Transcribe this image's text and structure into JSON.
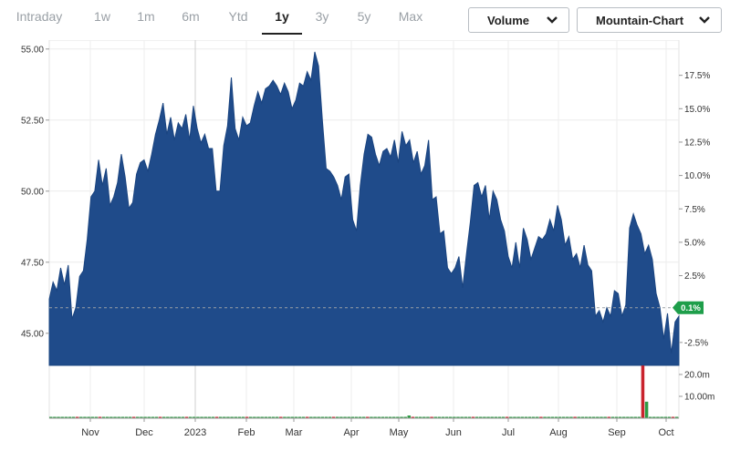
{
  "tabs": [
    {
      "label": "Intraday",
      "active": false
    },
    {
      "label": "1w",
      "active": false
    },
    {
      "label": "1m",
      "active": false
    },
    {
      "label": "6m",
      "active": false
    },
    {
      "label": "Ytd",
      "active": false
    },
    {
      "label": "1y",
      "active": true
    },
    {
      "label": "3y",
      "active": false
    },
    {
      "label": "5y",
      "active": false
    },
    {
      "label": "Max",
      "active": false
    }
  ],
  "controls": {
    "volume_label": "Volume",
    "chart_type_label": "Mountain-Chart"
  },
  "colors": {
    "area": "#1f4b8a",
    "area_edge": "#1a4480",
    "marker": "#1e9e4a",
    "volume_up": "#2e9b44",
    "volume_down": "#c9232d"
  },
  "chart_data": {
    "type": "area",
    "price_ticks": [
      "55.00",
      "52.50",
      "50.00",
      "47.50",
      "45.00"
    ],
    "price_tick_values": [
      55,
      52.5,
      50,
      47.5,
      45
    ],
    "pct_ticks": [
      "17.5%",
      "15.0%",
      "12.5%",
      "10.0%",
      "7.5%",
      "5.0%",
      "2.5%",
      "-2.5%"
    ],
    "pct_tick_values": [
      17.5,
      15,
      12.5,
      10,
      7.5,
      5,
      2.5,
      -2.5
    ],
    "marker_label": "0.1%",
    "marker_value": 0.1,
    "x_labels": [
      "Nov",
      "Dec",
      "2023",
      "Feb",
      "Mar",
      "Apr",
      "May",
      "Jun",
      "Jul",
      "Aug",
      "Sep",
      "Oct"
    ],
    "volume_ticks": [
      "20.0m",
      "10.00m"
    ],
    "volume_tick_values": [
      20,
      10
    ],
    "ylim": [
      44,
      55.3
    ],
    "series": [
      {
        "values": [
          46.2,
          46.8,
          46.5,
          47.3,
          46.7,
          47.4,
          45.5,
          45.9,
          47.0,
          47.2,
          48.3,
          49.8,
          50.0,
          51.1,
          50.2,
          50.8,
          49.5,
          49.8,
          50.3,
          51.3,
          50.5,
          49.4,
          49.6,
          50.6,
          51.0,
          51.1,
          50.7,
          51.3,
          52.0,
          52.5,
          53.1,
          52.0,
          52.6,
          51.8,
          52.4,
          52.2,
          52.7,
          51.8,
          53.0,
          52.2,
          51.7,
          52.0,
          51.5,
          51.5,
          50.0,
          50.0,
          51.6,
          52.3,
          54.0,
          52.2,
          51.8,
          52.6,
          52.3,
          52.4,
          53.0,
          53.5,
          53.1,
          53.6,
          53.7,
          53.9,
          53.7,
          53.4,
          53.8,
          53.5,
          52.9,
          53.2,
          53.8,
          53.7,
          54.2,
          53.9,
          54.9,
          54.4,
          52.5,
          50.8,
          50.7,
          50.5,
          50.2,
          49.7,
          50.5,
          50.6,
          49.0,
          48.6,
          50.2,
          51.3,
          52.0,
          51.9,
          51.3,
          50.9,
          51.4,
          51.5,
          51.2,
          51.8,
          51.0,
          52.1,
          51.6,
          51.8,
          51.0,
          51.4,
          50.6,
          50.9,
          51.8,
          49.7,
          49.8,
          48.5,
          48.6,
          47.3,
          47.1,
          47.3,
          47.7,
          46.6,
          47.8,
          48.9,
          50.2,
          50.3,
          49.8,
          50.2,
          49.0,
          50.0,
          49.7,
          49.0,
          48.6,
          47.7,
          47.3,
          48.2,
          47.3,
          48.7,
          48.3,
          47.6,
          48.0,
          48.4,
          48.3,
          48.5,
          49.0,
          48.6,
          49.5,
          49.0,
          48.1,
          48.4,
          47.6,
          47.8,
          47.3,
          48.1,
          47.4,
          47.2,
          45.6,
          45.8,
          45.4,
          45.9,
          45.6,
          46.5,
          46.4,
          45.6,
          46.0,
          48.7,
          49.2,
          48.8,
          48.5,
          47.8,
          48.1,
          47.6,
          46.4,
          45.9,
          44.8,
          45.7,
          44.3,
          45.4,
          45.6
        ]
      }
    ],
    "volume": {
      "values": [
        0.3,
        0.4,
        0.3,
        0.5,
        0.3,
        0.4,
        0.6,
        0.3,
        0.4,
        0.5,
        0.4,
        0.3,
        0.4,
        0.6,
        0.3,
        0.4,
        0.5,
        0.4,
        0.3,
        0.4,
        0.4,
        0.6,
        0.3,
        0.4,
        0.5,
        0.3,
        0.4,
        0.4,
        0.3,
        0.5,
        0.4,
        0.3,
        0.4,
        0.5,
        0.3,
        0.4,
        0.6,
        0.4,
        0.3,
        0.4,
        0.5,
        0.4,
        0.3,
        0.4,
        0.5,
        0.4,
        0.3,
        0.4,
        0.5,
        0.4,
        0.3,
        0.4,
        0.5,
        0.3,
        0.4,
        0.4,
        0.3,
        0.5,
        0.4,
        0.3,
        0.4,
        0.6,
        0.4,
        0.3,
        0.4,
        0.5,
        0.3,
        0.4,
        0.4,
        0.5,
        0.3,
        0.4,
        0.6,
        0.3,
        0.4,
        0.5,
        0.4,
        0.3,
        0.4,
        0.5,
        0.3,
        0.4,
        0.4,
        0.5,
        0.3,
        0.4,
        0.4,
        0.3,
        0.5,
        0.4,
        0.3,
        0.4,
        0.5,
        0.3,
        0.4,
        1.2,
        0.4,
        0.3,
        0.4,
        0.5,
        0.3,
        0.4,
        0.4,
        0.3,
        0.5,
        0.4,
        0.3,
        0.4,
        0.5,
        0.3,
        0.4,
        0.4,
        0.5,
        0.3,
        0.4,
        0.4,
        0.3,
        0.5,
        0.4,
        0.3,
        0.4,
        0.5,
        0.3,
        0.4,
        0.4,
        0.3,
        0.5,
        0.4,
        0.3,
        0.4,
        0.5,
        0.3,
        0.4,
        0.4,
        0.5,
        0.3,
        0.4,
        0.4,
        0.3,
        0.5,
        0.4,
        0.3,
        0.4,
        0.5,
        0.3,
        0.4,
        0.4,
        0.3,
        0.5,
        0.4,
        0.3,
        0.4,
        0.5,
        0.3,
        0.4,
        0.6,
        0.4,
        23.6,
        7.4,
        0.5,
        0.3,
        0.4,
        0.5,
        0.4,
        0.3,
        0.5,
        0.4
      ],
      "down_days": [
        7,
        13,
        22,
        29,
        36,
        44,
        52,
        61,
        68,
        75,
        84,
        96,
        101,
        112,
        121,
        130,
        139,
        148,
        157,
        165,
        171,
        177,
        178,
        181
      ]
    }
  }
}
